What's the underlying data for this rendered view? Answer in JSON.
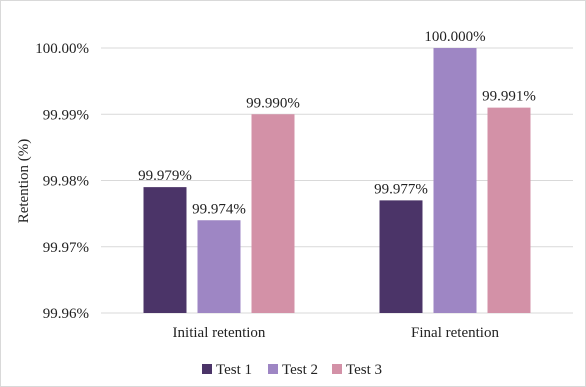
{
  "chart_data": {
    "type": "bar",
    "title": "",
    "xlabel": "",
    "ylabel": "Retention (%)",
    "ylim": [
      99.96,
      100.0
    ],
    "yticks": [
      "99.96%",
      "99.97%",
      "99.98%",
      "99.99%",
      "100.00%"
    ],
    "ytick_values": [
      99.96,
      99.97,
      99.98,
      99.99,
      100.0
    ],
    "grid": "horizontal",
    "legend_position": "bottom",
    "categories": [
      "Initial retention",
      "Final retention"
    ],
    "series": [
      {
        "name": "Test 1",
        "color": "#4b3468",
        "values": [
          99.979,
          99.977
        ],
        "labels": [
          "99.979%",
          "99.977%"
        ]
      },
      {
        "name": "Test 2",
        "color": "#9e86c4",
        "values": [
          99.974,
          100.0
        ],
        "labels": [
          "99.974%",
          "100.000%"
        ]
      },
      {
        "name": "Test 3",
        "color": "#d391a7",
        "values": [
          99.99,
          99.991
        ],
        "labels": [
          "99.990%",
          "99.991%"
        ]
      }
    ]
  }
}
